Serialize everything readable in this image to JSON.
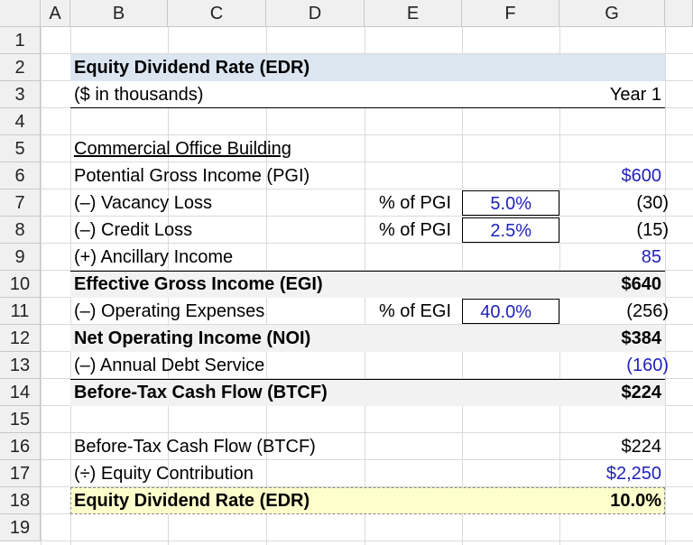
{
  "column_headers": [
    "A",
    "B",
    "C",
    "D",
    "E",
    "F",
    "G"
  ],
  "row_headers": [
    1,
    2,
    3,
    4,
    5,
    6,
    7,
    8,
    9,
    10,
    11,
    12,
    13,
    14,
    15,
    16,
    17,
    18,
    19
  ],
  "header": {
    "title": "Equity Dividend Rate (EDR)",
    "units": "($ in thousands)",
    "period": "Year 1"
  },
  "section_title": "Commercial Office Building",
  "lines": [
    {
      "label": "Potential Gross Income (PGI)",
      "value": "$600"
    },
    {
      "label": "(–) Vacancy Loss",
      "basis": "% of PGI",
      "rate": "5.0%",
      "value": "(30)"
    },
    {
      "label": "(–) Credit Loss",
      "basis": "% of PGI",
      "rate": "2.5%",
      "value": "(15)"
    },
    {
      "label": "(+) Ancillary Income",
      "value": "85"
    },
    {
      "label": "Effective Gross Income (EGI)",
      "value": "$640"
    },
    {
      "label": "(–) Operating Expenses",
      "basis": "% of EGI",
      "rate": "40.0%",
      "value": "(256)"
    },
    {
      "label": "Net Operating Income (NOI)",
      "value": "$384"
    },
    {
      "label": "(–) Annual Debt Service",
      "value": "(160)"
    },
    {
      "label": "Before-Tax Cash Flow (BTCF)",
      "value": "$224"
    },
    {
      "label": "Before-Tax Cash Flow (BTCF)",
      "value": "$224"
    },
    {
      "label": "(÷) Equity Contribution",
      "value": "$2,250"
    },
    {
      "label": "Equity Dividend Rate (EDR)",
      "value": "10.0%"
    }
  ]
}
